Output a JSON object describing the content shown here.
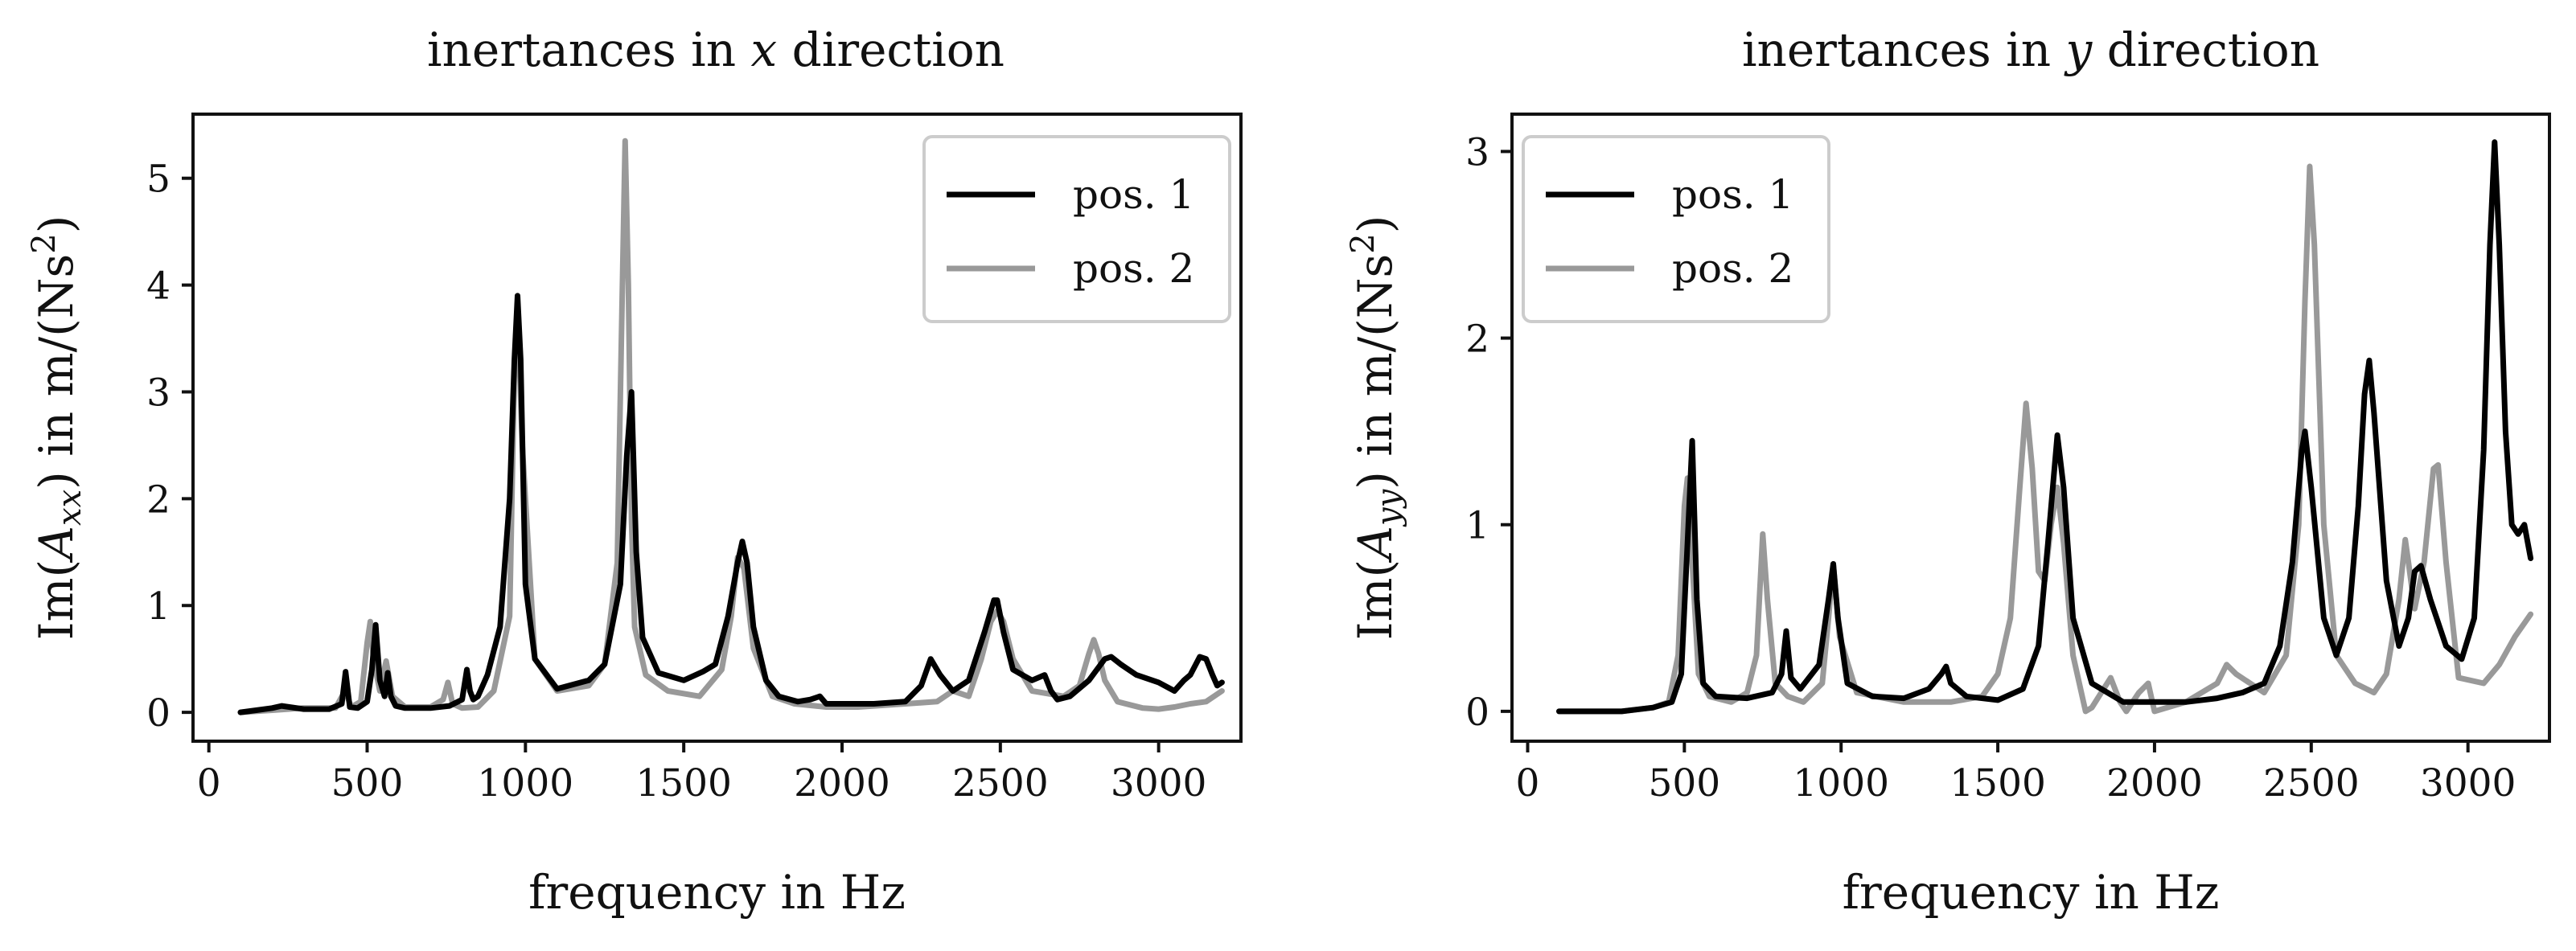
{
  "chart_data": [
    {
      "type": "line",
      "title": "inertances in x direction",
      "title_parts": [
        "inertances in ",
        "x",
        " direction"
      ],
      "xlabel": "frequency in Hz",
      "ylabel": "Im(Axx) in m/(Ns2)",
      "ylabel_parts": {
        "pre": "Im(",
        "sym": "A",
        "sub": "xx",
        "mid": ") in m/(Ns",
        "sup": "2",
        "post": ")"
      },
      "xlim": [
        -50,
        3260
      ],
      "ylim": [
        -0.27,
        5.6
      ],
      "xticks": [
        0,
        500,
        1000,
        1500,
        2000,
        2500,
        3000
      ],
      "yticks": [
        0,
        1,
        2,
        3,
        4,
        5
      ],
      "grid": false,
      "legend_position": "top-right",
      "series": [
        {
          "name": "pos. 1",
          "color": "#000000",
          "x": [
            100,
            150,
            200,
            230,
            300,
            380,
            420,
            432,
            445,
            470,
            500,
            515,
            527,
            540,
            555,
            565,
            575,
            590,
            620,
            700,
            760,
            800,
            815,
            825,
            835,
            850,
            880,
            920,
            950,
            965,
            975,
            985,
            1000,
            1030,
            1100,
            1200,
            1250,
            1300,
            1320,
            1335,
            1350,
            1370,
            1420,
            1500,
            1560,
            1600,
            1640,
            1670,
            1685,
            1700,
            1720,
            1760,
            1800,
            1860,
            1900,
            1930,
            1950,
            2000,
            2100,
            2200,
            2250,
            2280,
            2310,
            2350,
            2400,
            2450,
            2480,
            2490,
            2510,
            2540,
            2600,
            2640,
            2660,
            2680,
            2720,
            2780,
            2830,
            2850,
            2880,
            2930,
            3000,
            3050,
            3080,
            3100,
            3130,
            3150,
            3170,
            3185,
            3200
          ],
          "y": [
            0.0,
            0.02,
            0.04,
            0.06,
            0.03,
            0.03,
            0.08,
            0.38,
            0.05,
            0.04,
            0.1,
            0.4,
            0.82,
            0.3,
            0.15,
            0.37,
            0.15,
            0.06,
            0.04,
            0.04,
            0.06,
            0.12,
            0.4,
            0.2,
            0.12,
            0.15,
            0.35,
            0.8,
            2.0,
            3.3,
            3.9,
            3.3,
            1.2,
            0.5,
            0.22,
            0.3,
            0.45,
            1.2,
            2.4,
            3.0,
            1.5,
            0.7,
            0.37,
            0.3,
            0.38,
            0.45,
            0.9,
            1.4,
            1.6,
            1.4,
            0.8,
            0.3,
            0.15,
            0.1,
            0.12,
            0.15,
            0.08,
            0.08,
            0.08,
            0.1,
            0.25,
            0.5,
            0.35,
            0.2,
            0.3,
            0.75,
            1.05,
            1.05,
            0.75,
            0.4,
            0.3,
            0.35,
            0.2,
            0.12,
            0.15,
            0.3,
            0.5,
            0.52,
            0.45,
            0.35,
            0.28,
            0.2,
            0.3,
            0.35,
            0.52,
            0.5,
            0.35,
            0.25,
            0.28
          ]
        },
        {
          "name": "pos. 2",
          "color": "#999999",
          "x": [
            100,
            200,
            300,
            400,
            430,
            450,
            480,
            500,
            510,
            520,
            540,
            560,
            580,
            620,
            700,
            740,
            755,
            770,
            800,
            850,
            900,
            950,
            965,
            975,
            990,
            1030,
            1100,
            1200,
            1250,
            1290,
            1305,
            1315,
            1325,
            1335,
            1345,
            1380,
            1450,
            1550,
            1620,
            1650,
            1670,
            1690,
            1720,
            1780,
            1850,
            1950,
            2050,
            2200,
            2300,
            2350,
            2400,
            2440,
            2470,
            2490,
            2510,
            2540,
            2600,
            2700,
            2750,
            2780,
            2795,
            2810,
            2830,
            2870,
            2950,
            3000,
            3050,
            3100,
            3150,
            3200
          ],
          "y": [
            0.0,
            0.02,
            0.04,
            0.04,
            0.2,
            0.05,
            0.1,
            0.65,
            0.85,
            0.5,
            0.2,
            0.48,
            0.15,
            0.05,
            0.05,
            0.12,
            0.28,
            0.08,
            0.04,
            0.05,
            0.2,
            0.9,
            3.2,
            3.8,
            2.5,
            0.5,
            0.2,
            0.25,
            0.45,
            1.4,
            3.8,
            5.35,
            4.0,
            1.8,
            0.8,
            0.35,
            0.2,
            0.15,
            0.4,
            0.9,
            1.45,
            1.35,
            0.6,
            0.15,
            0.08,
            0.05,
            0.05,
            0.08,
            0.1,
            0.2,
            0.15,
            0.5,
            0.85,
            0.95,
            0.85,
            0.5,
            0.2,
            0.15,
            0.25,
            0.55,
            0.68,
            0.55,
            0.3,
            0.1,
            0.04,
            0.03,
            0.05,
            0.08,
            0.1,
            0.2
          ]
        }
      ]
    },
    {
      "type": "line",
      "title": "inertances in y direction",
      "title_parts": [
        "inertances in ",
        "y",
        " direction"
      ],
      "xlabel": "frequency in Hz",
      "ylabel": "Im(Ayy) in m/(Ns2)",
      "ylabel_parts": {
        "pre": "Im(",
        "sym": "A",
        "sub": "yy",
        "mid": ") in m/(Ns",
        "sup": "2",
        "post": ")"
      },
      "xlim": [
        -50,
        3260
      ],
      "ylim": [
        -0.16,
        3.2
      ],
      "xticks": [
        0,
        500,
        1000,
        1500,
        2000,
        2500,
        3000
      ],
      "yticks": [
        0,
        1,
        2,
        3
      ],
      "grid": false,
      "legend_position": "top-left",
      "series": [
        {
          "name": "pos. 1",
          "color": "#000000",
          "x": [
            100,
            200,
            300,
            400,
            460,
            490,
            510,
            525,
            540,
            560,
            600,
            700,
            780,
            810,
            825,
            840,
            870,
            930,
            960,
            975,
            990,
            1020,
            1100,
            1200,
            1280,
            1320,
            1335,
            1350,
            1400,
            1500,
            1580,
            1630,
            1660,
            1690,
            1710,
            1740,
            1800,
            1900,
            2000,
            2100,
            2200,
            2280,
            2350,
            2400,
            2440,
            2470,
            2480,
            2500,
            2540,
            2580,
            2620,
            2650,
            2670,
            2685,
            2700,
            2740,
            2780,
            2810,
            2830,
            2850,
            2880,
            2930,
            2980,
            3020,
            3050,
            3070,
            3085,
            3100,
            3120,
            3140,
            3160,
            3180,
            3200
          ],
          "y": [
            0.0,
            0.0,
            0.0,
            0.02,
            0.05,
            0.2,
            0.9,
            1.45,
            0.6,
            0.15,
            0.08,
            0.07,
            0.1,
            0.2,
            0.43,
            0.18,
            0.12,
            0.25,
            0.6,
            0.79,
            0.5,
            0.15,
            0.08,
            0.07,
            0.12,
            0.2,
            0.24,
            0.15,
            0.08,
            0.06,
            0.12,
            0.35,
            0.9,
            1.48,
            1.2,
            0.5,
            0.15,
            0.05,
            0.05,
            0.05,
            0.07,
            0.1,
            0.15,
            0.35,
            0.8,
            1.4,
            1.5,
            1.2,
            0.5,
            0.3,
            0.5,
            1.1,
            1.7,
            1.88,
            1.6,
            0.7,
            0.35,
            0.5,
            0.75,
            0.78,
            0.6,
            0.35,
            0.28,
            0.5,
            1.4,
            2.5,
            3.05,
            2.5,
            1.5,
            1.0,
            0.95,
            1.0,
            0.82
          ]
        },
        {
          "name": "pos. 2",
          "color": "#999999",
          "x": [
            100,
            200,
            300,
            400,
            450,
            480,
            500,
            510,
            525,
            545,
            580,
            650,
            700,
            730,
            750,
            765,
            790,
            830,
            880,
            940,
            960,
            975,
            995,
            1050,
            1200,
            1350,
            1450,
            1500,
            1540,
            1570,
            1590,
            1610,
            1630,
            1650,
            1670,
            1690,
            1710,
            1740,
            1780,
            1800,
            1830,
            1860,
            1890,
            1910,
            1950,
            1980,
            2000,
            2100,
            2200,
            2230,
            2260,
            2350,
            2420,
            2460,
            2480,
            2495,
            2510,
            2540,
            2580,
            2640,
            2700,
            2740,
            2780,
            2800,
            2810,
            2830,
            2860,
            2890,
            2905,
            2930,
            2970,
            3050,
            3100,
            3150,
            3200
          ],
          "y": [
            0.0,
            0.0,
            0.0,
            0.02,
            0.05,
            0.3,
            1.1,
            1.25,
            0.8,
            0.2,
            0.08,
            0.05,
            0.1,
            0.3,
            0.95,
            0.6,
            0.15,
            0.08,
            0.05,
            0.15,
            0.5,
            0.79,
            0.4,
            0.1,
            0.05,
            0.05,
            0.08,
            0.2,
            0.5,
            1.2,
            1.65,
            1.3,
            0.75,
            0.7,
            1.0,
            1.2,
            0.9,
            0.3,
            0.0,
            0.02,
            0.1,
            0.18,
            0.05,
            0.0,
            0.1,
            0.15,
            0.0,
            0.05,
            0.15,
            0.25,
            0.2,
            0.1,
            0.3,
            1.0,
            2.2,
            2.92,
            2.5,
            1.0,
            0.3,
            0.15,
            0.1,
            0.2,
            0.6,
            0.92,
            0.8,
            0.55,
            0.8,
            1.3,
            1.32,
            0.8,
            0.18,
            0.15,
            0.25,
            0.4,
            0.52
          ]
        }
      ]
    }
  ]
}
